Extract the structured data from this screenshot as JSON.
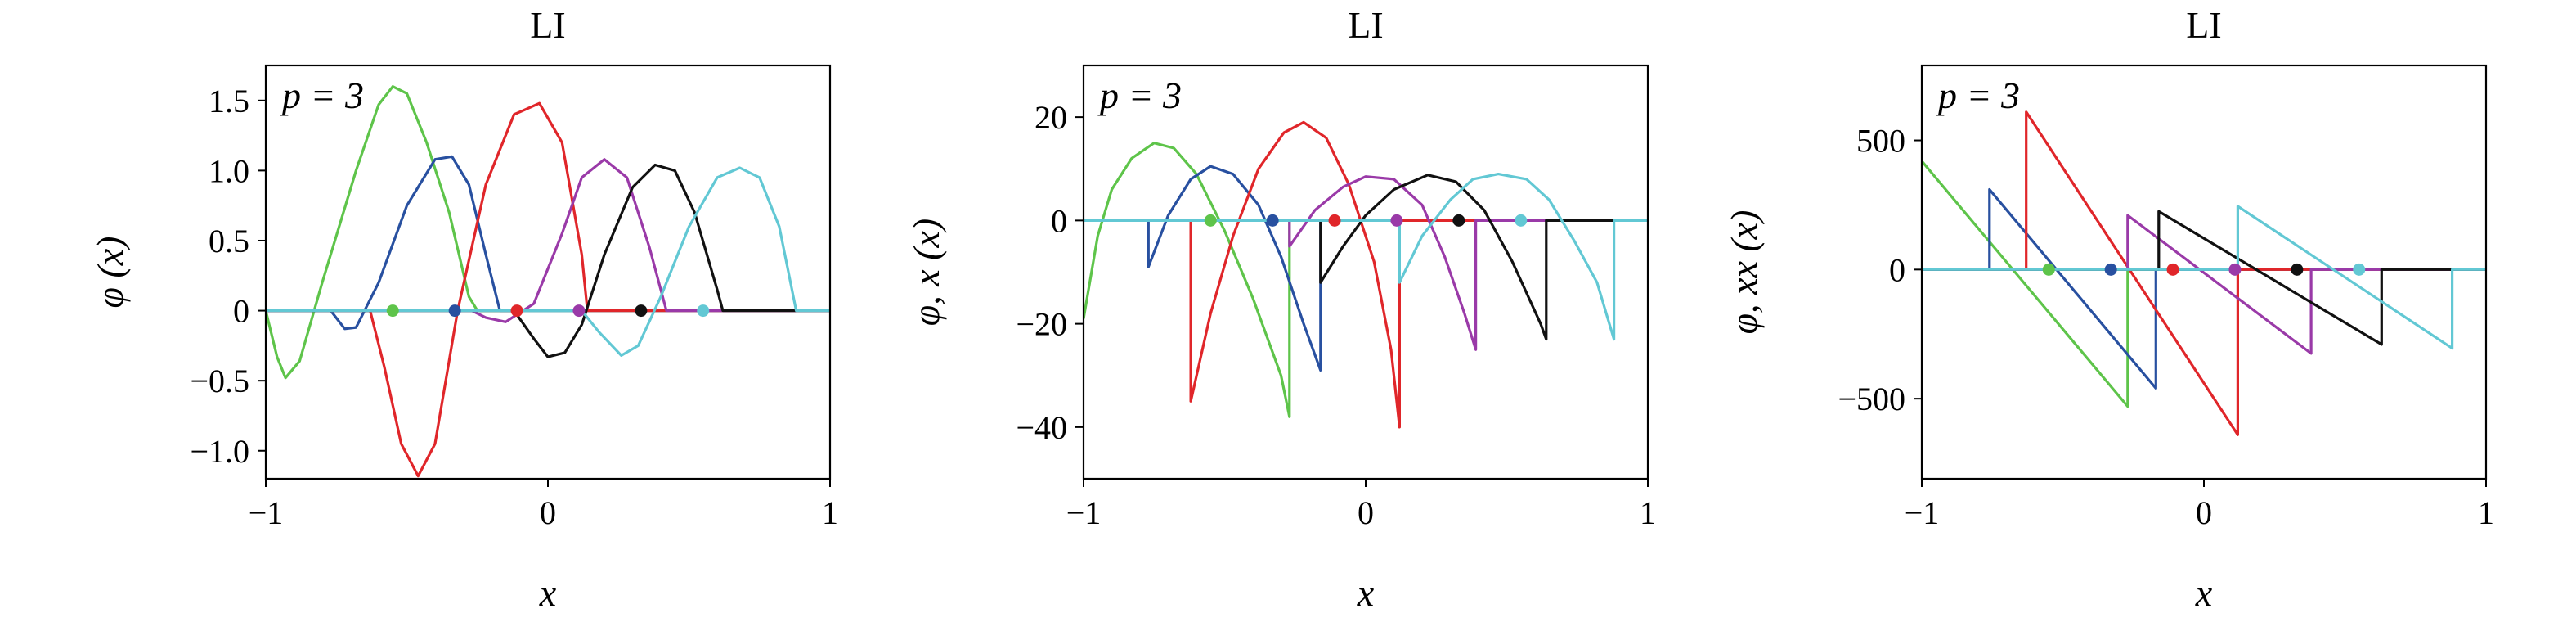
{
  "chart_data": [
    {
      "type": "line",
      "title": "LI",
      "xlabel": "x",
      "ylabel": "φ (x)",
      "annotation": "p = 3",
      "xlim": [
        -1,
        1
      ],
      "ylim": [
        -1.2,
        1.75
      ],
      "xticks": [
        -1,
        0,
        1
      ],
      "xtick_labels": [
        "−1",
        "0",
        "1"
      ],
      "yticks": [
        -1.0,
        -0.5,
        0,
        0.5,
        1.0,
        1.5
      ],
      "ytick_labels": [
        "−1.0",
        "−0.5",
        "0",
        "0.5",
        "1.0",
        "1.5"
      ],
      "grid": false,
      "series": [
        {
          "color": "#5ec44a",
          "points": [
            [
              -1,
              0
            ],
            [
              -0.96,
              -0.33
            ],
            [
              -0.93,
              -0.48
            ],
            [
              -0.88,
              -0.36
            ],
            [
              -0.8,
              0.2
            ],
            [
              -0.68,
              1.0
            ],
            [
              -0.6,
              1.47
            ],
            [
              -0.55,
              1.6
            ],
            [
              -0.5,
              1.55
            ],
            [
              -0.43,
              1.2
            ],
            [
              -0.35,
              0.7
            ],
            [
              -0.28,
              0.1
            ],
            [
              -0.25,
              0
            ],
            [
              1,
              0
            ]
          ]
        },
        {
          "color": "#2850a0",
          "points": [
            [
              -1,
              0
            ],
            [
              -0.77,
              0
            ],
            [
              -0.72,
              -0.13
            ],
            [
              -0.68,
              -0.12
            ],
            [
              -0.6,
              0.2
            ],
            [
              -0.5,
              0.75
            ],
            [
              -0.4,
              1.08
            ],
            [
              -0.34,
              1.1
            ],
            [
              -0.28,
              0.9
            ],
            [
              -0.22,
              0.4
            ],
            [
              -0.17,
              0
            ],
            [
              1,
              0
            ]
          ]
        },
        {
          "color": "#e0262a",
          "points": [
            [
              -1,
              0
            ],
            [
              -0.63,
              0
            ],
            [
              -0.58,
              -0.4
            ],
            [
              -0.52,
              -0.95
            ],
            [
              -0.46,
              -1.18
            ],
            [
              -0.4,
              -0.95
            ],
            [
              -0.32,
              0
            ],
            [
              -0.22,
              0.9
            ],
            [
              -0.12,
              1.4
            ],
            [
              -0.03,
              1.48
            ],
            [
              0.05,
              1.2
            ],
            [
              0.12,
              0.4
            ],
            [
              0.14,
              0
            ],
            [
              1,
              0
            ]
          ]
        },
        {
          "color": "#9a3aa8",
          "points": [
            [
              -1,
              0
            ],
            [
              -0.27,
              0
            ],
            [
              -0.22,
              -0.05
            ],
            [
              -0.15,
              -0.08
            ],
            [
              -0.05,
              0.05
            ],
            [
              0.05,
              0.55
            ],
            [
              0.12,
              0.95
            ],
            [
              0.2,
              1.08
            ],
            [
              0.28,
              0.95
            ],
            [
              0.36,
              0.45
            ],
            [
              0.42,
              0
            ],
            [
              1,
              0
            ]
          ]
        },
        {
          "color": "#111111",
          "points": [
            [
              -1,
              0
            ],
            [
              -0.12,
              0
            ],
            [
              -0.05,
              -0.2
            ],
            [
              0,
              -0.33
            ],
            [
              0.06,
              -0.3
            ],
            [
              0.12,
              -0.1
            ],
            [
              0.2,
              0.4
            ],
            [
              0.3,
              0.88
            ],
            [
              0.38,
              1.04
            ],
            [
              0.45,
              1.0
            ],
            [
              0.52,
              0.7
            ],
            [
              0.6,
              0.15
            ],
            [
              0.62,
              0
            ],
            [
              1,
              0
            ]
          ]
        },
        {
          "color": "#62c8d4",
          "points": [
            [
              -1,
              0
            ],
            [
              0.12,
              0
            ],
            [
              0.18,
              -0.15
            ],
            [
              0.26,
              -0.32
            ],
            [
              0.32,
              -0.25
            ],
            [
              0.4,
              0.1
            ],
            [
              0.5,
              0.6
            ],
            [
              0.6,
              0.95
            ],
            [
              0.68,
              1.02
            ],
            [
              0.75,
              0.95
            ],
            [
              0.82,
              0.6
            ],
            [
              0.88,
              0
            ],
            [
              1,
              0
            ]
          ]
        }
      ],
      "markers": [
        {
          "x": -0.55,
          "color": "#5ec44a"
        },
        {
          "x": -0.33,
          "color": "#2850a0"
        },
        {
          "x": -0.11,
          "color": "#e0262a"
        },
        {
          "x": 0.11,
          "color": "#9a3aa8"
        },
        {
          "x": 0.33,
          "color": "#111111"
        },
        {
          "x": 0.55,
          "color": "#62c8d4"
        }
      ]
    },
    {
      "type": "line",
      "title": "LI",
      "xlabel": "x",
      "ylabel": "φ, x (x)",
      "annotation": "p = 3",
      "xlim": [
        -1,
        1
      ],
      "ylim": [
        -50,
        30
      ],
      "xticks": [
        -1,
        0,
        1
      ],
      "xtick_labels": [
        "−1",
        "0",
        "1"
      ],
      "yticks": [
        -40,
        -20,
        0,
        20
      ],
      "ytick_labels": [
        "−40",
        "−20",
        "0",
        "20"
      ],
      "grid": false,
      "series": [
        {
          "color": "#5ec44a",
          "points": [
            [
              -1,
              -19
            ],
            [
              -0.95,
              -3
            ],
            [
              -0.9,
              6
            ],
            [
              -0.83,
              12
            ],
            [
              -0.75,
              15
            ],
            [
              -0.68,
              14
            ],
            [
              -0.6,
              9
            ],
            [
              -0.5,
              -2
            ],
            [
              -0.4,
              -15
            ],
            [
              -0.3,
              -30
            ],
            [
              -0.27,
              -38
            ],
            [
              -0.27,
              0
            ],
            [
              1,
              0
            ]
          ]
        },
        {
          "color": "#2850a0",
          "points": [
            [
              -1,
              0
            ],
            [
              -0.77,
              0
            ],
            [
              -0.77,
              -9
            ],
            [
              -0.7,
              1
            ],
            [
              -0.62,
              8
            ],
            [
              -0.55,
              10.5
            ],
            [
              -0.47,
              9
            ],
            [
              -0.38,
              3
            ],
            [
              -0.3,
              -7
            ],
            [
              -0.22,
              -20
            ],
            [
              -0.16,
              -29
            ],
            [
              -0.16,
              0
            ],
            [
              1,
              0
            ]
          ]
        },
        {
          "color": "#e0262a",
          "points": [
            [
              -1,
              0
            ],
            [
              -0.62,
              0
            ],
            [
              -0.62,
              -35
            ],
            [
              -0.55,
              -18
            ],
            [
              -0.47,
              -3
            ],
            [
              -0.38,
              10
            ],
            [
              -0.29,
              17
            ],
            [
              -0.22,
              19
            ],
            [
              -0.14,
              16
            ],
            [
              -0.06,
              7
            ],
            [
              0.03,
              -8
            ],
            [
              0.09,
              -25
            ],
            [
              0.12,
              -40
            ],
            [
              0.12,
              0
            ],
            [
              1,
              0
            ]
          ]
        },
        {
          "color": "#9a3aa8",
          "points": [
            [
              -1,
              0
            ],
            [
              -0.27,
              0
            ],
            [
              -0.27,
              -5
            ],
            [
              -0.18,
              2
            ],
            [
              -0.08,
              6.5
            ],
            [
              0,
              8.5
            ],
            [
              0.1,
              8
            ],
            [
              0.2,
              3
            ],
            [
              0.28,
              -7
            ],
            [
              0.35,
              -18
            ],
            [
              0.39,
              -25
            ],
            [
              0.39,
              0
            ],
            [
              1,
              0
            ]
          ]
        },
        {
          "color": "#111111",
          "points": [
            [
              -1,
              0
            ],
            [
              -0.16,
              0
            ],
            [
              -0.16,
              -12
            ],
            [
              -0.08,
              -5
            ],
            [
              0,
              1
            ],
            [
              0.1,
              6
            ],
            [
              0.22,
              8.8
            ],
            [
              0.32,
              7.5
            ],
            [
              0.42,
              2
            ],
            [
              0.52,
              -8
            ],
            [
              0.62,
              -20
            ],
            [
              0.64,
              -23
            ],
            [
              0.64,
              0
            ],
            [
              1,
              0
            ]
          ]
        },
        {
          "color": "#62c8d4",
          "points": [
            [
              -1,
              0
            ],
            [
              0.12,
              0
            ],
            [
              0.12,
              -12
            ],
            [
              0.2,
              -3
            ],
            [
              0.3,
              4
            ],
            [
              0.38,
              8
            ],
            [
              0.47,
              9
            ],
            [
              0.57,
              8
            ],
            [
              0.65,
              4
            ],
            [
              0.74,
              -4
            ],
            [
              0.82,
              -12
            ],
            [
              0.88,
              -23
            ],
            [
              0.88,
              0
            ],
            [
              1,
              0
            ]
          ]
        }
      ],
      "markers": [
        {
          "x": -0.55,
          "color": "#5ec44a"
        },
        {
          "x": -0.33,
          "color": "#2850a0"
        },
        {
          "x": -0.11,
          "color": "#e0262a"
        },
        {
          "x": 0.11,
          "color": "#9a3aa8"
        },
        {
          "x": 0.33,
          "color": "#111111"
        },
        {
          "x": 0.55,
          "color": "#62c8d4"
        }
      ]
    },
    {
      "type": "line",
      "title": "LI",
      "xlabel": "x",
      "ylabel": "φ, xx (x)",
      "annotation": "p = 3",
      "xlim": [
        -1,
        1
      ],
      "ylim": [
        -810,
        790
      ],
      "xticks": [
        -1,
        0,
        1
      ],
      "xtick_labels": [
        "−1",
        "0",
        "1"
      ],
      "yticks": [
        -500,
        0,
        500
      ],
      "ytick_labels": [
        "−500",
        "0",
        "500"
      ],
      "grid": false,
      "series": [
        {
          "color": "#5ec44a",
          "points": [
            [
              -1,
              420
            ],
            [
              -0.27,
              -530
            ],
            [
              -0.27,
              0
            ],
            [
              1,
              0
            ]
          ]
        },
        {
          "color": "#2850a0",
          "points": [
            [
              -1,
              0
            ],
            [
              -0.76,
              0
            ],
            [
              -0.76,
              310
            ],
            [
              -0.17,
              -460
            ],
            [
              -0.17,
              0
            ],
            [
              1,
              0
            ]
          ]
        },
        {
          "color": "#e0262a",
          "points": [
            [
              -1,
              0
            ],
            [
              -0.63,
              0
            ],
            [
              -0.63,
              610
            ],
            [
              0.12,
              -640
            ],
            [
              0.12,
              0
            ],
            [
              1,
              0
            ]
          ]
        },
        {
          "color": "#9a3aa8",
          "points": [
            [
              -1,
              0
            ],
            [
              -0.27,
              0
            ],
            [
              -0.27,
              210
            ],
            [
              0.38,
              -325
            ],
            [
              0.38,
              0
            ],
            [
              1,
              0
            ]
          ]
        },
        {
          "color": "#111111",
          "points": [
            [
              -1,
              0
            ],
            [
              -0.16,
              0
            ],
            [
              -0.16,
              225
            ],
            [
              0.63,
              -290
            ],
            [
              0.63,
              0
            ],
            [
              1,
              0
            ]
          ]
        },
        {
          "color": "#62c8d4",
          "points": [
            [
              -1,
              0
            ],
            [
              0.12,
              0
            ],
            [
              0.12,
              245
            ],
            [
              0.88,
              -305
            ],
            [
              0.88,
              0
            ],
            [
              1,
              0
            ]
          ]
        }
      ],
      "markers": [
        {
          "x": -0.55,
          "color": "#5ec44a"
        },
        {
          "x": -0.33,
          "color": "#2850a0"
        },
        {
          "x": -0.11,
          "color": "#e0262a"
        },
        {
          "x": 0.11,
          "color": "#9a3aa8"
        },
        {
          "x": 0.33,
          "color": "#111111"
        },
        {
          "x": 0.55,
          "color": "#62c8d4"
        }
      ]
    }
  ]
}
